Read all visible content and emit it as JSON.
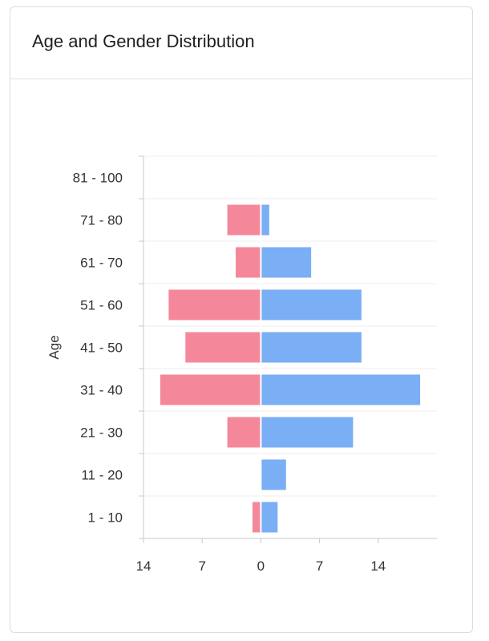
{
  "card": {
    "title": "Age and Gender Distribution"
  },
  "chart_data": {
    "type": "bar",
    "orientation": "horizontal",
    "stacked_diverging": true,
    "title": "Age and Gender Distribution",
    "ylabel": "Age",
    "xlabel": "",
    "categories": [
      "81 - 100",
      "71 - 80",
      "61 - 70",
      "51 - 60",
      "41 - 50",
      "31 - 40",
      "21 - 30",
      "11 - 20",
      "1 - 10"
    ],
    "series": [
      {
        "color": "#f4889a",
        "values": [
          0,
          -4,
          -3,
          -11,
          -9,
          -12,
          -4,
          0,
          -1
        ]
      },
      {
        "color": "#7aaef5",
        "values": [
          0,
          1,
          6,
          12,
          12,
          19,
          11,
          3,
          2
        ]
      }
    ],
    "xlim": [
      -14,
      21
    ],
    "xticks": [
      -14,
      -7,
      0,
      7,
      14
    ],
    "xtick_labels": [
      "14",
      "7",
      "0",
      "7",
      "14"
    ],
    "grid": true
  }
}
